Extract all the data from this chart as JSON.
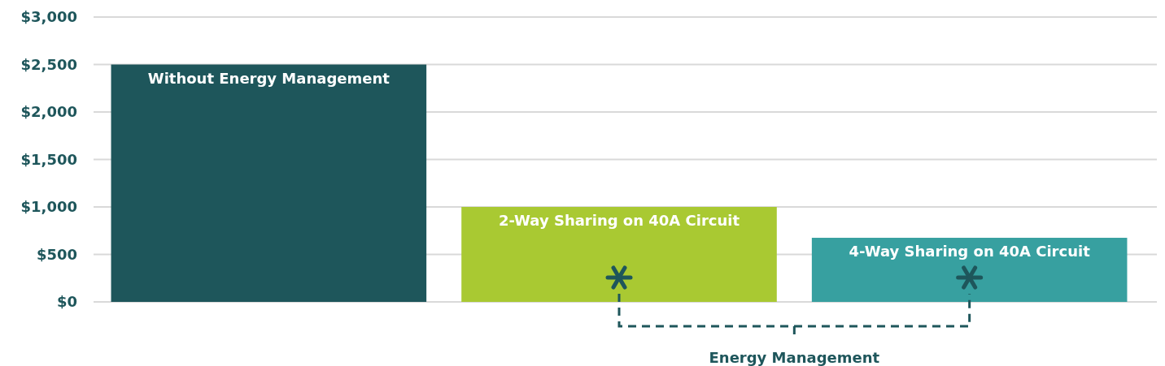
{
  "chart_data": {
    "type": "bar",
    "categories": [
      "Without Energy Management",
      "2-Way Sharing on 40A Circuit",
      "4-Way Sharing on 40A Circuit"
    ],
    "values": [
      2500,
      1000,
      675
    ],
    "colors": [
      "#1e565b",
      "#a9c932",
      "#37a0a0"
    ],
    "ylim": [
      0,
      3000
    ],
    "yticks": [
      {
        "value": 0,
        "label": "$0"
      },
      {
        "value": 500,
        "label": "$500"
      },
      {
        "value": 1000,
        "label": "$1,000"
      },
      {
        "value": 1500,
        "label": "$1,500"
      },
      {
        "value": 2000,
        "label": "$2,000"
      },
      {
        "value": 2500,
        "label": "$2,500"
      },
      {
        "value": 3000,
        "label": "$3,000"
      }
    ],
    "grid": "y",
    "tick_labels": "y",
    "annotations": [
      "Energy Management"
    ]
  }
}
